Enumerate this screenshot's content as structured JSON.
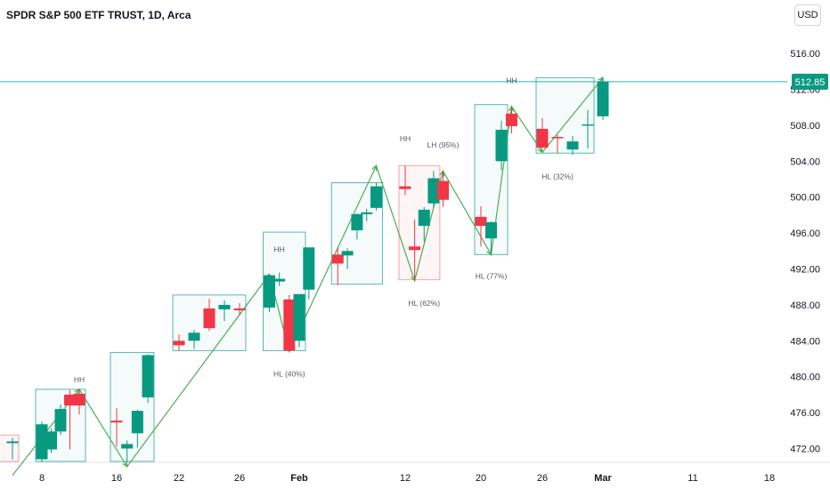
{
  "header": {
    "title": "SPDR S&P 500 ETF TRUST, 1D, Arca",
    "currency": "USD"
  },
  "colors": {
    "up": "#089981",
    "down": "#f23645",
    "zigzag": "#4caf50",
    "box_bull": "#57b8b0",
    "box_bear": "#f3a3a8",
    "price_line": "#2fb5a0",
    "axis_text": "#131722"
  },
  "chart_data": {
    "type": "candlestick",
    "title": "SPDR S&P 500 ETF TRUST, 1D, Arca",
    "ylim": [
      470.0,
      520.0
    ],
    "y_ticks": [
      472,
      476,
      480,
      484,
      488,
      492,
      496,
      500,
      504,
      508,
      512,
      516
    ],
    "y_tick_labels": [
      "472.00",
      "476.00",
      "480.00",
      "484.00",
      "488.00",
      "492.00",
      "496.00",
      "500.00",
      "504.00",
      "508.00",
      "512.00",
      "516.00"
    ],
    "x_ticks": [
      {
        "label": "8",
        "date": "2024-01-08"
      },
      {
        "label": "16",
        "date": "2024-01-16"
      },
      {
        "label": "22",
        "date": "2024-01-22"
      },
      {
        "label": "26",
        "date": "2024-01-26"
      },
      {
        "label": "Feb",
        "date": "2024-02-01"
      },
      {
        "label": "12",
        "date": "2024-02-12"
      },
      {
        "label": "20",
        "date": "2024-02-20"
      },
      {
        "label": "26",
        "date": "2024-02-26"
      },
      {
        "label": "Mar",
        "date": "2024-03-01"
      },
      {
        "label": "11",
        "date": "2024-03-11"
      },
      {
        "label": "18",
        "date": "2024-03-18"
      }
    ],
    "candles": [
      {
        "date": "2024-01-05",
        "open": 472.6,
        "high": 473.2,
        "low": 470.8,
        "close": 472.8
      },
      {
        "date": "2024-01-08",
        "open": 470.8,
        "high": 475.0,
        "low": 470.5,
        "close": 474.7
      },
      {
        "date": "2024-01-09",
        "open": 471.9,
        "high": 474.2,
        "low": 471.5,
        "close": 473.9
      },
      {
        "date": "2024-01-10",
        "open": 473.9,
        "high": 476.9,
        "low": 473.5,
        "close": 476.4
      },
      {
        "date": "2024-01-11",
        "open": 478.0,
        "high": 478.5,
        "low": 471.9,
        "close": 476.8
      },
      {
        "date": "2024-01-12",
        "open": 478.1,
        "high": 478.6,
        "low": 475.8,
        "close": 476.8
      },
      {
        "date": "2024-01-16",
        "open": 475.1,
        "high": 476.5,
        "low": 472.2,
        "close": 474.9
      },
      {
        "date": "2024-01-17",
        "open": 472.0,
        "high": 472.9,
        "low": 470.5,
        "close": 472.5
      },
      {
        "date": "2024-01-18",
        "open": 473.7,
        "high": 476.3,
        "low": 472.1,
        "close": 476.2
      },
      {
        "date": "2024-01-19",
        "open": 477.7,
        "high": 482.5,
        "low": 477.1,
        "close": 482.4
      },
      {
        "date": "2024-01-22",
        "open": 484.0,
        "high": 484.7,
        "low": 482.9,
        "close": 483.5
      },
      {
        "date": "2024-01-23",
        "open": 484.0,
        "high": 485.2,
        "low": 483.1,
        "close": 484.9
      },
      {
        "date": "2024-01-24",
        "open": 487.6,
        "high": 488.7,
        "low": 485.1,
        "close": 485.4
      },
      {
        "date": "2024-01-25",
        "open": 487.5,
        "high": 488.5,
        "low": 486.2,
        "close": 488.0
      },
      {
        "date": "2024-01-26",
        "open": 487.6,
        "high": 488.2,
        "low": 486.8,
        "close": 487.4
      },
      {
        "date": "2024-01-29",
        "open": 487.7,
        "high": 491.4,
        "low": 487.2,
        "close": 491.3
      },
      {
        "date": "2024-01-30",
        "open": 490.6,
        "high": 491.6,
        "low": 490.1,
        "close": 490.9
      },
      {
        "date": "2024-01-31",
        "open": 488.6,
        "high": 489.1,
        "low": 482.8,
        "close": 482.9
      },
      {
        "date": "2024-02-01",
        "open": 484.0,
        "high": 489.2,
        "low": 483.3,
        "close": 489.2
      },
      {
        "date": "2024-02-02",
        "open": 489.7,
        "high": 494.4,
        "low": 488.6,
        "close": 494.4
      },
      {
        "date": "2024-02-05",
        "open": 493.6,
        "high": 494.4,
        "low": 490.2,
        "close": 492.6
      },
      {
        "date": "2024-02-06",
        "open": 493.5,
        "high": 494.3,
        "low": 492.0,
        "close": 494.0
      },
      {
        "date": "2024-02-07",
        "open": 496.3,
        "high": 498.2,
        "low": 495.3,
        "close": 498.1
      },
      {
        "date": "2024-02-08",
        "open": 498.1,
        "high": 498.7,
        "low": 497.3,
        "close": 498.3
      },
      {
        "date": "2024-02-09",
        "open": 498.8,
        "high": 501.6,
        "low": 498.5,
        "close": 501.2
      },
      {
        "date": "2024-02-12",
        "open": 501.2,
        "high": 503.5,
        "low": 500.2,
        "close": 500.9
      },
      {
        "date": "2024-02-13",
        "open": 494.5,
        "high": 497.5,
        "low": 490.7,
        "close": 494.1
      },
      {
        "date": "2024-02-14",
        "open": 496.8,
        "high": 498.9,
        "low": 495.0,
        "close": 498.6
      },
      {
        "date": "2024-02-15",
        "open": 499.3,
        "high": 502.9,
        "low": 498.8,
        "close": 502.1
      },
      {
        "date": "2024-02-16",
        "open": 501.8,
        "high": 502.9,
        "low": 498.9,
        "close": 499.7
      },
      {
        "date": "2024-02-20",
        "open": 497.8,
        "high": 499.0,
        "low": 494.5,
        "close": 496.8
      },
      {
        "date": "2024-02-21",
        "open": 495.4,
        "high": 497.3,
        "low": 493.6,
        "close": 497.2
      },
      {
        "date": "2024-02-22",
        "open": 504.0,
        "high": 508.5,
        "low": 503.0,
        "close": 507.5
      },
      {
        "date": "2024-02-23",
        "open": 509.3,
        "high": 510.1,
        "low": 507.1,
        "close": 507.9
      },
      {
        "date": "2024-02-26",
        "open": 507.6,
        "high": 508.8,
        "low": 505.8,
        "close": 505.5
      },
      {
        "date": "2024-02-27",
        "open": 506.7,
        "high": 506.9,
        "low": 504.9,
        "close": 506.6
      },
      {
        "date": "2024-02-28",
        "open": 505.3,
        "high": 506.8,
        "low": 504.7,
        "close": 506.2
      },
      {
        "date": "2024-02-29",
        "open": 508.1,
        "high": 509.7,
        "low": 505.4,
        "close": 508.1
      },
      {
        "date": "2024-03-01",
        "open": 509.0,
        "high": 513.3,
        "low": 508.6,
        "close": 512.85
      }
    ],
    "last_price": 512.85,
    "last_price_label": "512.85",
    "zigzag": [
      {
        "date": "2024-01-05",
        "price": 469.0
      },
      {
        "date": "2024-01-12",
        "price": 478.6
      },
      {
        "date": "2024-01-17",
        "price": 470.0
      },
      {
        "date": "2024-01-29",
        "price": 491.4
      },
      {
        "date": "2024-01-31",
        "price": 482.8
      },
      {
        "date": "2024-02-09",
        "price": 503.5
      },
      {
        "date": "2024-02-13",
        "price": 490.7
      },
      {
        "date": "2024-02-16",
        "price": 502.9
      },
      {
        "date": "2024-02-21",
        "price": 493.6
      },
      {
        "date": "2024-02-23",
        "price": 510.1
      },
      {
        "date": "2024-02-26",
        "price": 505.0
      },
      {
        "date": "2024-03-01",
        "price": 513.3
      }
    ],
    "annotations": [
      {
        "text": "HH",
        "date": "2024-01-12",
        "price": 479.4
      },
      {
        "text": "HH",
        "date": "2024-01-30",
        "price": 493.9
      },
      {
        "text": "HL (40%)",
        "date": "2024-01-31",
        "price": 480.0
      },
      {
        "text": "HH",
        "date": "2024-02-12",
        "price": 506.2
      },
      {
        "text": "HL (62%)",
        "date": "2024-02-14",
        "price": 487.9
      },
      {
        "text": "LH (95%)",
        "date": "2024-02-16",
        "price": 505.5
      },
      {
        "text": "HL (77%)",
        "date": "2024-02-21",
        "price": 490.9
      },
      {
        "text": "HL (32%)",
        "date": "2024-02-27",
        "price": 502.0
      },
      {
        "text": "HH",
        "date": "2024-02-23",
        "price": 512.7
      }
    ],
    "boxes": [
      {
        "kind": "bear",
        "date_start": "2024-01-03",
        "date_end": "2024-01-05",
        "price_top": 473.5,
        "price_bottom": 470.0
      },
      {
        "kind": "bull",
        "date_start": "2024-01-08",
        "date_end": "2024-01-12",
        "price_top": 478.6,
        "price_bottom": 470.0
      },
      {
        "kind": "bull",
        "date_start": "2024-01-16",
        "date_end": "2024-01-19",
        "price_top": 482.7,
        "price_bottom": 470.0
      },
      {
        "kind": "bull",
        "date_start": "2024-01-22",
        "date_end": "2024-01-26",
        "price_top": 489.1,
        "price_bottom": 482.9
      },
      {
        "kind": "bull",
        "date_start": "2024-01-29",
        "date_end": "2024-02-01",
        "price_top": 496.1,
        "price_bottom": 482.9
      },
      {
        "kind": "bull",
        "date_start": "2024-02-05",
        "date_end": "2024-02-09",
        "price_top": 501.6,
        "price_bottom": 490.3
      },
      {
        "kind": "bear",
        "date_start": "2024-02-12",
        "date_end": "2024-02-15",
        "price_top": 503.5,
        "price_bottom": 490.8
      },
      {
        "kind": "bull",
        "date_start": "2024-02-20",
        "date_end": "2024-02-22",
        "price_top": 510.3,
        "price_bottom": 493.6
      },
      {
        "kind": "bull",
        "date_start": "2024-02-26",
        "date_end": "2024-02-29",
        "price_top": 513.3,
        "price_bottom": 504.9
      }
    ]
  }
}
